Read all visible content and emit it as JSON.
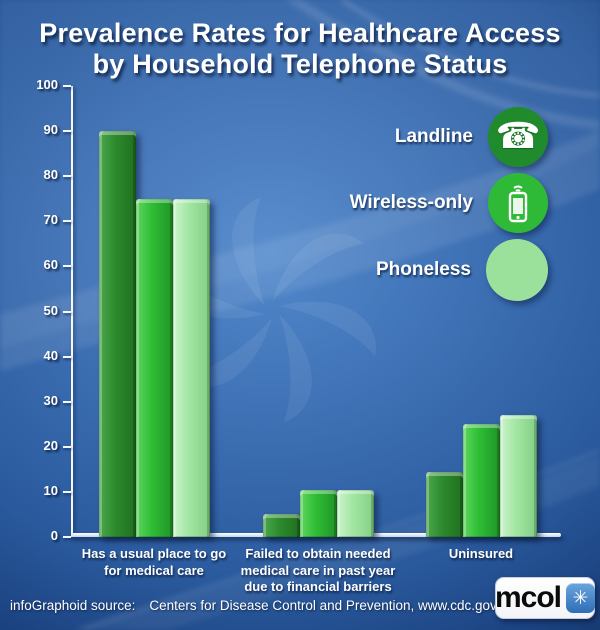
{
  "title": {
    "line1": "Prevalence Rates for Healthcare Access",
    "line2": "by Household Telephone Status"
  },
  "chart_data": {
    "type": "bar",
    "title": "Prevalence Rates for Healthcare Access by Household Telephone Status",
    "categories": [
      "Has a usual place to go for medical care",
      "Failed to obtain needed medical care in past year due to financial barriers",
      "Uninsured"
    ],
    "category_lines": [
      [
        "Has a usual place to go",
        "for medical care"
      ],
      [
        "Failed to obtain needed",
        "medical care in past year",
        "due to financial barriers"
      ],
      [
        "Uninsured"
      ]
    ],
    "series": [
      {
        "name": "Landline",
        "values": [
          90,
          5,
          14.5
        ],
        "color": "#2e8b2e",
        "color_light": "#4ea94e",
        "color_dark": "#1f6f1f"
      },
      {
        "name": "Wireless-only",
        "values": [
          75,
          10.5,
          25
        ],
        "color": "#2fbe35",
        "color_light": "#5fd65f",
        "color_dark": "#1f9426"
      },
      {
        "name": "Phoneless",
        "values": [
          75,
          10.5,
          27
        ],
        "color": "#a3e6a3",
        "color_light": "#cdf4cd",
        "color_dark": "#82cf85"
      }
    ],
    "xlabel": "",
    "ylabel": "",
    "ylim": [
      0,
      100
    ],
    "yticks": [
      0,
      10,
      20,
      30,
      40,
      50,
      60,
      70,
      80,
      90,
      100
    ],
    "grid": false,
    "legend_position": "upper right"
  },
  "legend": {
    "items": [
      {
        "label": "Landline",
        "color": "#1f8b2d",
        "icon": "rotary-phone-icon"
      },
      {
        "label": "Wireless-only",
        "color": "#2eb936",
        "icon": "smartphone-icon"
      },
      {
        "label": "Phoneless",
        "color": "#9be09b",
        "icon": "none"
      }
    ]
  },
  "footer": {
    "source_label": "infoGraphoid source:",
    "source_text": "Centers for Disease Control and Prevention, www.cdc.gov",
    "logo_text": "mcol",
    "logo_icon_color": "#2f6db6"
  },
  "background": {
    "base_color": "#3a6cb0",
    "watermark": "pinwheel-watermark"
  }
}
